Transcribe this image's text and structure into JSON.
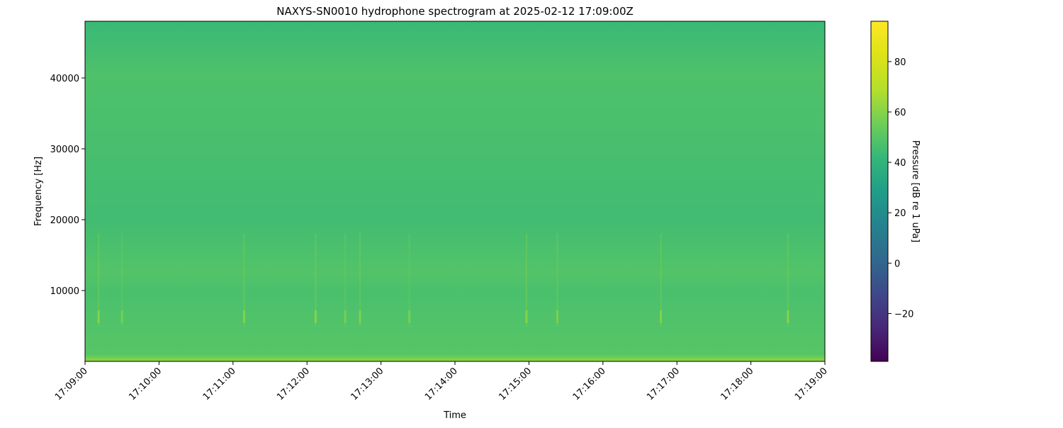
{
  "chart_data": {
    "type": "heatmap",
    "title": "NAXYS-SN0010 hydrophone spectrogram at 2025-02-12 17:09:00Z",
    "xlabel": "Time",
    "ylabel": "Frequency [Hz]",
    "colorbar_label": "Pressure [dB re 1 uPa]",
    "colormap": "viridis",
    "x_ticks": [
      "17:09:00",
      "17:10:00",
      "17:11:00",
      "17:12:00",
      "17:13:00",
      "17:14:00",
      "17:15:00",
      "17:16:00",
      "17:17:00",
      "17:18:00",
      "17:19:00"
    ],
    "xlim": [
      "17:09:00",
      "17:19:00"
    ],
    "y_ticks": [
      10000,
      20000,
      30000,
      40000
    ],
    "ylim": [
      0,
      48000
    ],
    "clim": [
      -39,
      96
    ],
    "colorbar_ticks": [
      -20,
      0,
      20,
      40,
      60,
      80
    ],
    "frequency_profile_db": [
      {
        "freq_hz": 0,
        "db": 62
      },
      {
        "freq_hz": 1000,
        "db": 50
      },
      {
        "freq_hz": 10000,
        "db": 47
      },
      {
        "freq_hz": 12500,
        "db": 49
      },
      {
        "freq_hz": 20000,
        "db": 45
      },
      {
        "freq_hz": 40500,
        "db": 48
      },
      {
        "freq_hz": 48000,
        "db": 43
      }
    ],
    "transients": [
      {
        "time": "17:09:11",
        "db": 58
      },
      {
        "time": "17:09:30",
        "db": 54
      },
      {
        "time": "17:11:09",
        "db": 57
      },
      {
        "time": "17:12:07",
        "db": 58
      },
      {
        "time": "17:12:31",
        "db": 55
      },
      {
        "time": "17:12:43",
        "db": 56
      },
      {
        "time": "17:13:23",
        "db": 55
      },
      {
        "time": "17:14:58",
        "db": 58
      },
      {
        "time": "17:15:23",
        "db": 56
      },
      {
        "time": "17:16:47",
        "db": 57
      },
      {
        "time": "17:18:30",
        "db": 58
      }
    ]
  }
}
